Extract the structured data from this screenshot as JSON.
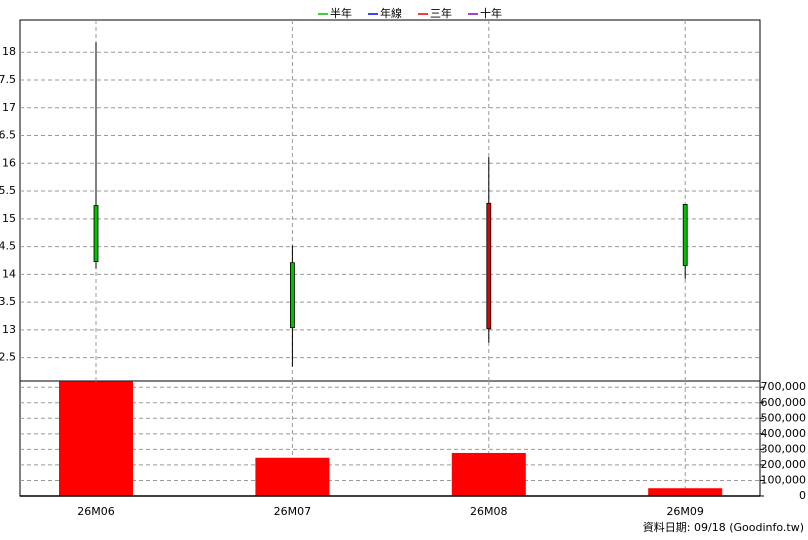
{
  "chart_data": [
    {
      "type": "candlestick",
      "legend": [
        {
          "name": "半年",
          "color": "#00c000"
        },
        {
          "name": "年線",
          "color": "#0000ff"
        },
        {
          "name": "三年",
          "color": "#e00000"
        },
        {
          "name": "十年",
          "color": "#8000c0"
        }
      ],
      "open": [
        15.24,
        14.21,
        13.02,
        15.26
      ],
      "high": [
        18.18,
        14.52,
        16.11,
        15.26
      ],
      "low": [
        14.1,
        12.34,
        12.77,
        13.92
      ],
      "close": [
        14.23,
        13.04,
        15.28,
        14.16
      ],
      "up_color": "#e00000",
      "down_color": "#00c000",
      "ylim": [
        12.08,
        18.58
      ],
      "yticks": [
        {
          "value": 12.5,
          "label": "2.5"
        },
        13,
        {
          "value": 13.5,
          "label": "3.5"
        },
        14,
        {
          "value": 14.5,
          "label": "4.5"
        },
        15,
        {
          "value": 15.5,
          "label": "5.5"
        },
        16,
        {
          "value": 16.5,
          "label": "6.5"
        },
        17,
        {
          "value": 17.5,
          "label": "7.5"
        },
        18
      ],
      "grid": true
    },
    {
      "type": "bar",
      "categories": [
        "26M06",
        "26M07",
        "26M08",
        "26M09"
      ],
      "values": [
        738000,
        246000,
        277000,
        50000
      ],
      "color": "#ff0000",
      "ylim": [
        0,
        740000
      ],
      "yticks": [
        0,
        {
          "value": 100000,
          "label": "100,000"
        },
        {
          "value": 200000,
          "label": "200,000"
        },
        {
          "value": 300000,
          "label": "300,000"
        },
        {
          "value": 400000,
          "label": "400,000"
        },
        {
          "value": 500000,
          "label": "500,000"
        },
        {
          "value": 600000,
          "label": "600,000"
        },
        {
          "value": 700000,
          "label": "700,000"
        }
      ],
      "grid": true
    }
  ],
  "note": "資料日期: 09/18  (Goodinfo.tw)"
}
